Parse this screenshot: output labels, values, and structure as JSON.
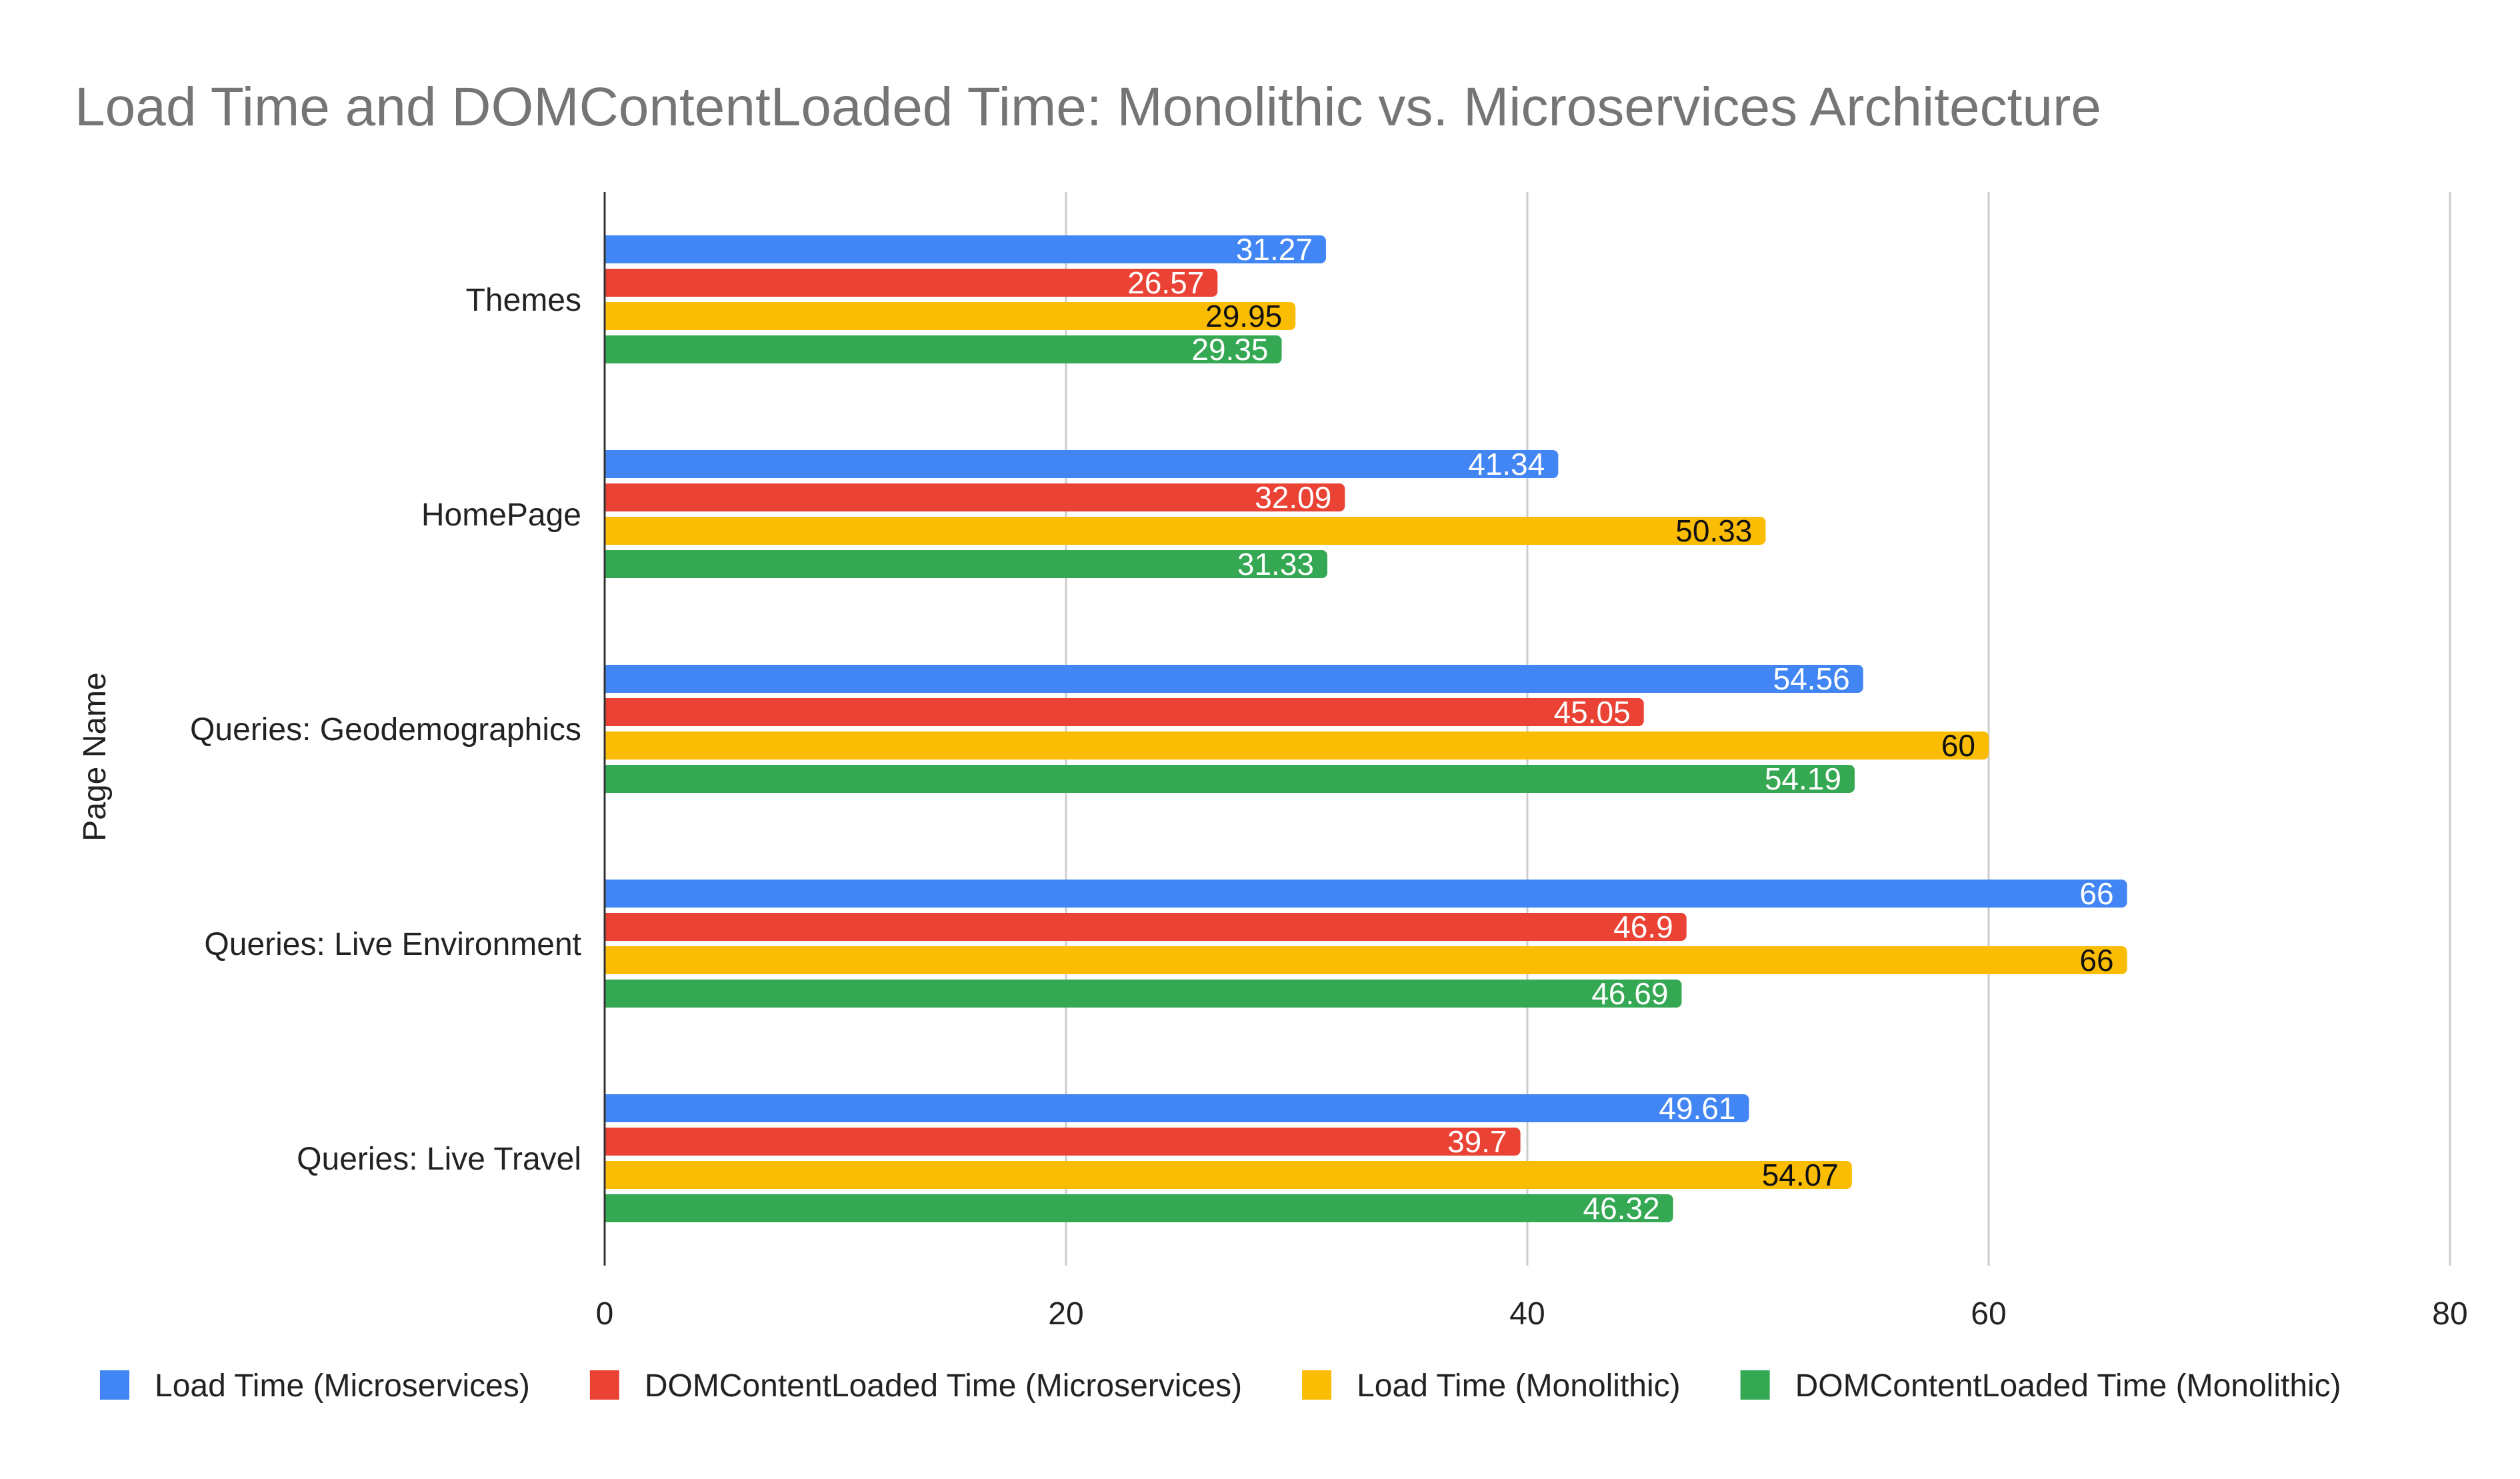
{
  "chart_data": {
    "type": "bar",
    "orientation": "horizontal",
    "title": "Load Time and DOMContentLoaded Time: Monolithic vs. Microservices Architecture",
    "xlabel": "",
    "ylabel": "Page Name",
    "xlim": [
      0,
      80
    ],
    "xticks": [
      0,
      20,
      40,
      60,
      80
    ],
    "grid": true,
    "legend_position": "bottom",
    "categories": [
      "Themes",
      "HomePage",
      "Queries: Geodemographics",
      "Queries: Live Environment",
      "Queries: Live Travel"
    ],
    "series": [
      {
        "name": "Load Time (Microservices)",
        "color": "#4285F4",
        "label_color": "#ffffff",
        "values": [
          31.27,
          41.34,
          54.56,
          66,
          49.61
        ],
        "labels": [
          "31.27",
          "41.34",
          "54.56",
          "66",
          "49.61"
        ]
      },
      {
        "name": "DOMContentLoaded Time (Microservices)",
        "color": "#EA4335",
        "label_color": "#ffffff",
        "values": [
          26.57,
          32.09,
          45.05,
          46.9,
          39.7
        ],
        "labels": [
          "26.57",
          "32.09",
          "45.05",
          "46.9",
          "39.7"
        ]
      },
      {
        "name": "Load Time (Monolithic)",
        "color": "#FBBC04",
        "label_color": "#111111",
        "values": [
          29.95,
          50.33,
          60,
          66,
          54.07
        ],
        "labels": [
          "29.95",
          "50.33",
          "60",
          "66",
          "54.07"
        ]
      },
      {
        "name": "DOMContentLoaded Time (Monolithic)",
        "color": "#34A853",
        "label_color": "#ffffff",
        "values": [
          29.35,
          31.33,
          54.19,
          46.69,
          46.32
        ],
        "labels": [
          "29.35",
          "31.33",
          "54.19",
          "46.69",
          "46.32"
        ]
      }
    ]
  }
}
